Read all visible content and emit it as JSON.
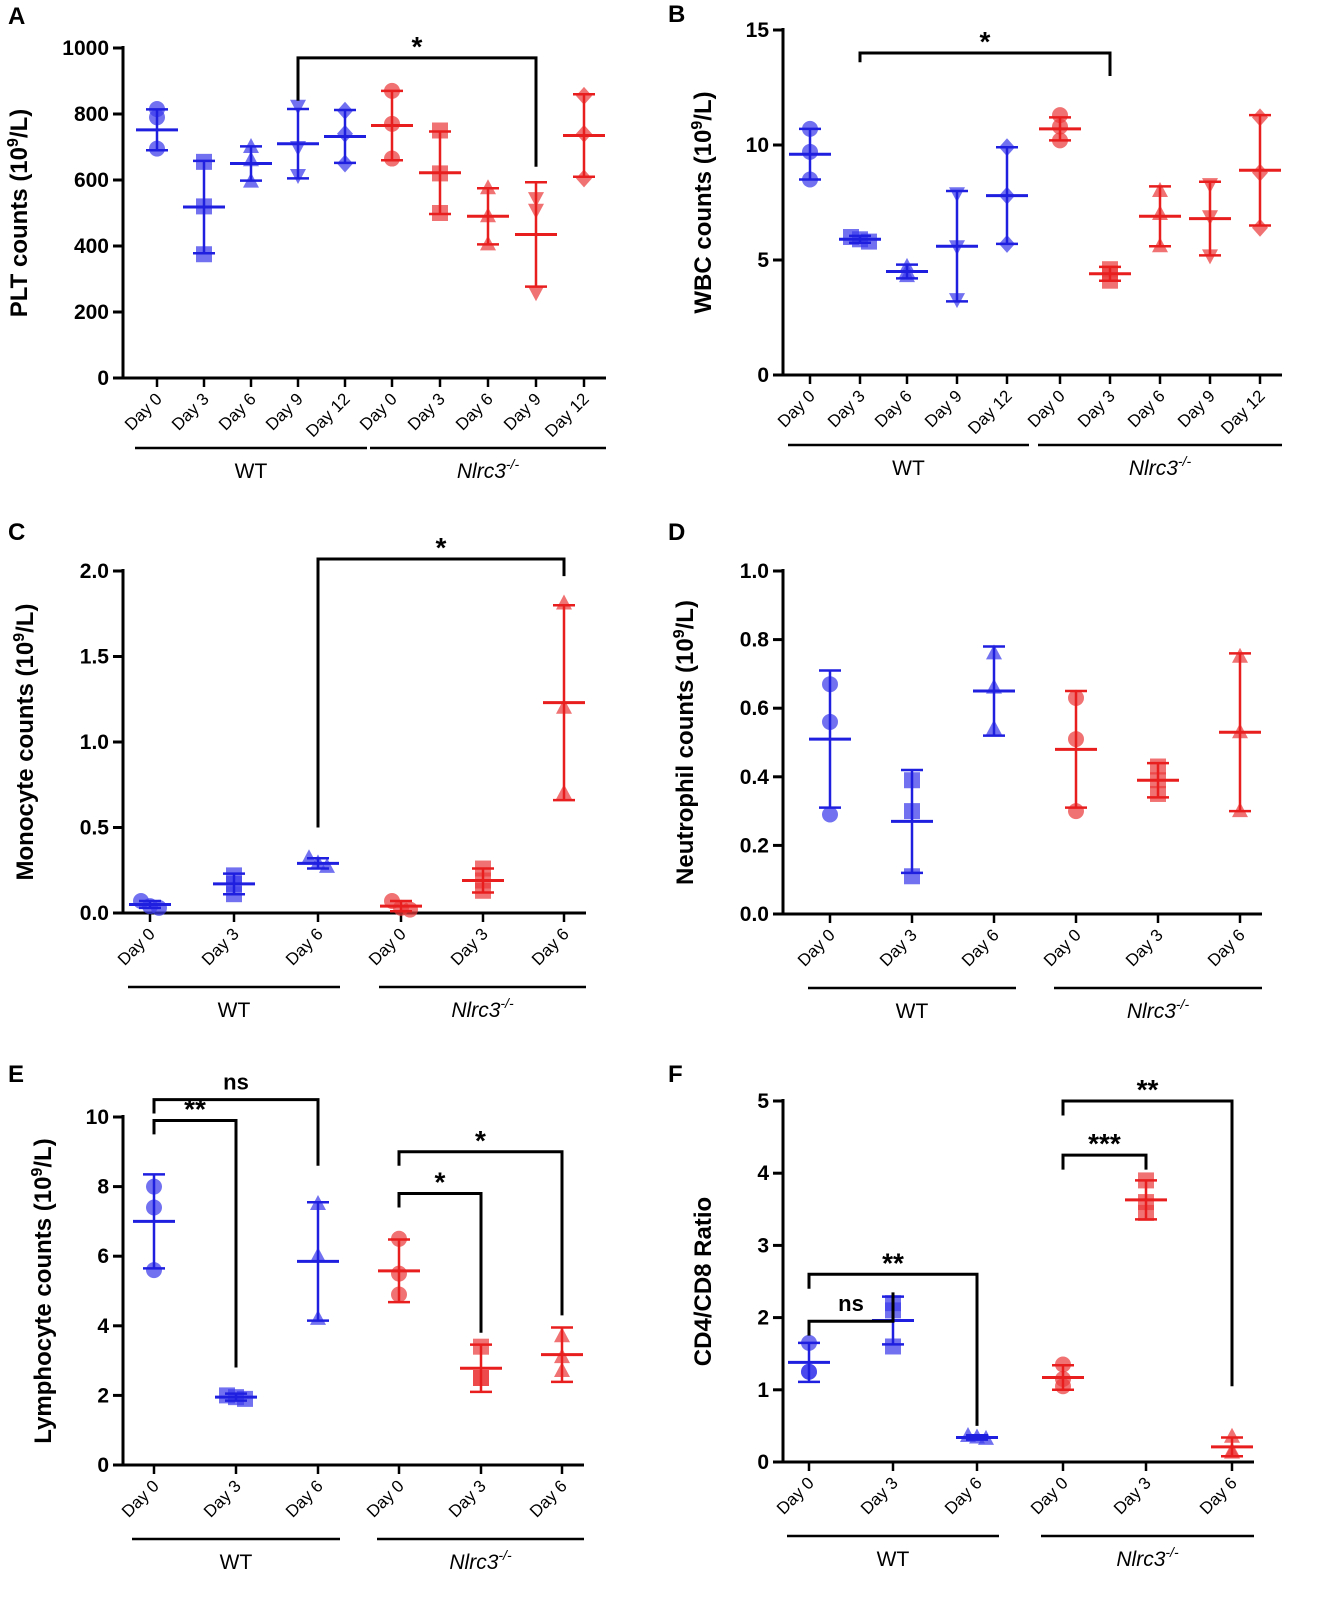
{
  "figure": {
    "group_wt": "WT",
    "group_ko": "Nlrc3",
    "group_ko_sup": "-/-",
    "colors": {
      "wt": "#1f1fe0",
      "ko": "#e81e1e",
      "axis": "#000000"
    }
  },
  "chart_data": [
    {
      "panel": "A",
      "type": "scatter",
      "ylabel": "PLT counts (10",
      "ylabel_sup": "9",
      "ylabel_end": "/L)",
      "ylim": [
        0,
        1000
      ],
      "yticks": [
        0,
        200,
        400,
        600,
        800,
        1000
      ],
      "categories": [
        "Day 0",
        "Day 3",
        "Day 6",
        "Day 9",
        "Day 12",
        "Day 0",
        "Day 3",
        "Day 6",
        "Day 9",
        "Day 12"
      ],
      "groups": [
        {
          "label": "WT",
          "from": 0,
          "to": 4
        },
        {
          "label": "Nlrc3",
          "from": 5,
          "to": 9
        }
      ],
      "series": [
        {
          "name": "WT Day 0",
          "group": "wt",
          "x": 0,
          "marker": "circle",
          "points": [
            815,
            790,
            695
          ],
          "mean": 752,
          "sd": 62
        },
        {
          "name": "WT Day 3",
          "group": "wt",
          "x": 1,
          "marker": "square",
          "points": [
            655,
            520,
            375
          ],
          "mean": 518,
          "sd": 140
        },
        {
          "name": "WT Day 6",
          "group": "wt",
          "x": 2,
          "marker": "triangle",
          "points": [
            700,
            660,
            595
          ],
          "mean": 650,
          "sd": 52
        },
        {
          "name": "WT Day 9",
          "group": "wt",
          "x": 3,
          "marker": "triangle-down",
          "points": [
            825,
            700,
            615
          ],
          "mean": 710,
          "sd": 105
        },
        {
          "name": "WT Day 12",
          "group": "wt",
          "x": 4,
          "marker": "diamond",
          "points": [
            810,
            740,
            650
          ],
          "mean": 732,
          "sd": 80
        },
        {
          "name": "Nlrc3-/- Day 0",
          "group": "ko",
          "x": 5,
          "marker": "circle",
          "points": [
            870,
            770,
            665
          ],
          "mean": 765,
          "sd": 105
        },
        {
          "name": "Nlrc3-/- Day 3",
          "group": "ko",
          "x": 6,
          "marker": "square",
          "points": [
            750,
            620,
            500
          ],
          "mean": 622,
          "sd": 125
        },
        {
          "name": "Nlrc3-/- Day 6",
          "group": "ko",
          "x": 7,
          "marker": "triangle",
          "points": [
            575,
            490,
            405
          ],
          "mean": 490,
          "sd": 85
        },
        {
          "name": "Nlrc3-/- Day 9",
          "group": "ko",
          "x": 8,
          "marker": "triangle-down",
          "points": [
            545,
            510,
            260
          ],
          "mean": 435,
          "sd": 158
        },
        {
          "name": "Nlrc3-/- Day 12",
          "group": "ko",
          "x": 9,
          "marker": "diamond",
          "points": [
            855,
            740,
            605
          ],
          "mean": 735,
          "sd": 125
        }
      ],
      "brackets": [
        {
          "from": 3,
          "to": 8,
          "level": 970,
          "label": "*",
          "dropFrom": 840,
          "dropTo": 640
        }
      ]
    },
    {
      "panel": "B",
      "type": "scatter",
      "ylabel": "WBC counts (10",
      "ylabel_sup": "9",
      "ylabel_end": "/L)",
      "ylim": [
        0,
        15
      ],
      "yticks": [
        0,
        5,
        10,
        15
      ],
      "categories": [
        "Day 0",
        "Day 3",
        "Day 6",
        "Day 9",
        "Day 12",
        "Day 0",
        "Day 3",
        "Day 6",
        "Day 9",
        "Day 12"
      ],
      "groups": [
        {
          "label": "WT",
          "from": 0,
          "to": 4
        },
        {
          "label": "Nlrc3",
          "from": 5,
          "to": 9
        }
      ],
      "series": [
        {
          "name": "WT Day 0",
          "group": "wt",
          "x": 0,
          "marker": "circle",
          "points": [
            10.7,
            9.7,
            8.5
          ],
          "mean": 9.6,
          "sd": 1.1
        },
        {
          "name": "WT Day 3",
          "group": "wt",
          "x": 1,
          "marker": "square",
          "points": [
            6.0,
            5.9,
            5.8
          ],
          "mean": 5.9,
          "sd": 0.15
        },
        {
          "name": "WT Day 6",
          "group": "wt",
          "x": 2,
          "marker": "triangle",
          "points": [
            4.7,
            4.5,
            4.3
          ],
          "mean": 4.5,
          "sd": 0.3
        },
        {
          "name": "WT Day 9",
          "group": "wt",
          "x": 3,
          "marker": "triangle-down",
          "points": [
            7.9,
            5.6,
            3.3
          ],
          "mean": 5.6,
          "sd": 2.4
        },
        {
          "name": "WT Day 12",
          "group": "wt",
          "x": 4,
          "marker": "diamond",
          "points": [
            9.9,
            7.8,
            5.7
          ],
          "mean": 7.8,
          "sd": 2.1
        },
        {
          "name": "Nlrc3-/- Day 0",
          "group": "ko",
          "x": 5,
          "marker": "circle",
          "points": [
            11.3,
            10.8,
            10.2
          ],
          "mean": 10.7,
          "sd": 0.5
        },
        {
          "name": "Nlrc3-/- Day 3",
          "group": "ko",
          "x": 6,
          "marker": "square",
          "points": [
            4.6,
            4.4,
            4.1
          ],
          "mean": 4.4,
          "sd": 0.3
        },
        {
          "name": "Nlrc3-/- Day 6",
          "group": "ko",
          "x": 7,
          "marker": "triangle",
          "points": [
            8.0,
            7.0,
            5.6
          ],
          "mean": 6.9,
          "sd": 1.3
        },
        {
          "name": "Nlrc3-/- Day 9",
          "group": "ko",
          "x": 8,
          "marker": "triangle-down",
          "points": [
            8.3,
            6.9,
            5.2
          ],
          "mean": 6.8,
          "sd": 1.6
        },
        {
          "name": "Nlrc3-/- Day 12",
          "group": "ko",
          "x": 9,
          "marker": "diamond",
          "points": [
            11.2,
            8.8,
            6.4
          ],
          "mean": 8.9,
          "sd": 2.4
        }
      ],
      "brackets": [
        {
          "from": 1,
          "to": 6,
          "level": 14.0,
          "label": "*",
          "dropFrom": 13.6,
          "dropTo": 13.0
        }
      ]
    },
    {
      "panel": "C",
      "type": "scatter",
      "ylabel": "Monocyte counts (10",
      "ylabel_sup": "9",
      "ylabel_end": "/L)",
      "ylim": [
        0,
        2.0
      ],
      "yticks": [
        0.0,
        0.5,
        1.0,
        1.5,
        2.0
      ],
      "ydecimals": 1,
      "categories": [
        "Day 0",
        "Day 3",
        "Day 6",
        "Day 0",
        "Day 3",
        "Day 6"
      ],
      "groups": [
        {
          "label": "WT",
          "from": 0,
          "to": 2
        },
        {
          "label": "Nlrc3",
          "from": 3,
          "to": 5
        }
      ],
      "series": [
        {
          "name": "WT Day 0",
          "group": "wt",
          "x": 0,
          "marker": "circle",
          "points": [
            0.07,
            0.04,
            0.03
          ],
          "mean": 0.05,
          "sd": 0.02
        },
        {
          "name": "WT Day 3",
          "group": "wt",
          "x": 1,
          "marker": "square",
          "points": [
            0.22,
            0.17,
            0.11
          ],
          "mean": 0.17,
          "sd": 0.06
        },
        {
          "name": "WT Day 6",
          "group": "wt",
          "x": 2,
          "marker": "triangle",
          "points": [
            0.32,
            0.29,
            0.27
          ],
          "mean": 0.29,
          "sd": 0.03
        },
        {
          "name": "Nlrc3-/- Day 0",
          "group": "ko",
          "x": 3,
          "marker": "circle",
          "points": [
            0.07,
            0.03,
            0.02
          ],
          "mean": 0.04,
          "sd": 0.03
        },
        {
          "name": "Nlrc3-/- Day 3",
          "group": "ko",
          "x": 4,
          "marker": "square",
          "points": [
            0.26,
            0.19,
            0.13
          ],
          "mean": 0.19,
          "sd": 0.07
        },
        {
          "name": "Nlrc3-/- Day 6",
          "group": "ko",
          "x": 5,
          "marker": "triangle",
          "points": [
            1.81,
            1.2,
            0.7
          ],
          "mean": 1.23,
          "sd": 0.57
        }
      ],
      "brackets": [
        {
          "from": 2,
          "to": 5,
          "level": 2.07,
          "label": "*",
          "dropFrom": 0.5,
          "dropTo": 1.97
        }
      ]
    },
    {
      "panel": "D",
      "type": "scatter",
      "ylabel": "Neutrophil counts (10",
      "ylabel_sup": "9",
      "ylabel_end": "/L)",
      "ylim": [
        0,
        1.0
      ],
      "yticks": [
        0.0,
        0.2,
        0.4,
        0.6,
        0.8,
        1.0
      ],
      "ydecimals": 1,
      "categories": [
        "Day 0",
        "Day 3",
        "Day 6",
        "Day 0",
        "Day 3",
        "Day 6"
      ],
      "groups": [
        {
          "label": "WT",
          "from": 0,
          "to": 2
        },
        {
          "label": "Nlrc3",
          "from": 3,
          "to": 5
        }
      ],
      "series": [
        {
          "name": "WT Day 0",
          "group": "wt",
          "x": 0,
          "marker": "circle",
          "points": [
            0.67,
            0.56,
            0.29
          ],
          "mean": 0.51,
          "sd": 0.2
        },
        {
          "name": "WT Day 3",
          "group": "wt",
          "x": 1,
          "marker": "square",
          "points": [
            0.39,
            0.3,
            0.11
          ],
          "mean": 0.27,
          "sd": 0.15
        },
        {
          "name": "WT Day 6",
          "group": "wt",
          "x": 2,
          "marker": "triangle",
          "points": [
            0.76,
            0.66,
            0.54
          ],
          "mean": 0.65,
          "sd": 0.13
        },
        {
          "name": "Nlrc3-/- Day 0",
          "group": "ko",
          "x": 3,
          "marker": "circle",
          "points": [
            0.63,
            0.51,
            0.3
          ],
          "mean": 0.48,
          "sd": 0.17
        },
        {
          "name": "Nlrc3-/- Day 3",
          "group": "ko",
          "x": 4,
          "marker": "square",
          "points": [
            0.43,
            0.39,
            0.35
          ],
          "mean": 0.39,
          "sd": 0.05
        },
        {
          "name": "Nlrc3-/- Day 6",
          "group": "ko",
          "x": 5,
          "marker": "triangle",
          "points": [
            0.75,
            0.53,
            0.3
          ],
          "mean": 0.53,
          "sd": 0.23
        }
      ],
      "brackets": []
    },
    {
      "panel": "E",
      "type": "scatter",
      "ylabel": "Lymphocyte counts (10",
      "ylabel_sup": "9",
      "ylabel_end": "/L)",
      "ylim": [
        0,
        10
      ],
      "yticks": [
        0,
        2,
        4,
        6,
        8,
        10
      ],
      "categories": [
        "Day 0",
        "Day 3",
        "Day 6",
        "Day 0",
        "Day 3",
        "Day 6"
      ],
      "groups": [
        {
          "label": "WT",
          "from": 0,
          "to": 2
        },
        {
          "label": "Nlrc3",
          "from": 3,
          "to": 5
        }
      ],
      "series": [
        {
          "name": "WT Day 0",
          "group": "wt",
          "x": 0,
          "marker": "circle",
          "points": [
            8.0,
            7.4,
            5.6
          ],
          "mean": 7.0,
          "sd": 1.35
        },
        {
          "name": "WT Day 3",
          "group": "wt",
          "x": 1,
          "marker": "square",
          "points": [
            2.0,
            1.95,
            1.9
          ],
          "mean": 1.95,
          "sd": 0.1
        },
        {
          "name": "WT Day 6",
          "group": "wt",
          "x": 2,
          "marker": "triangle",
          "points": [
            7.5,
            6.0,
            4.2
          ],
          "mean": 5.85,
          "sd": 1.7
        },
        {
          "name": "Nlrc3-/- Day 0",
          "group": "ko",
          "x": 3,
          "marker": "circle",
          "points": [
            6.5,
            5.5,
            4.9
          ],
          "mean": 5.58,
          "sd": 0.9
        },
        {
          "name": "Nlrc3-/- Day 3",
          "group": "ko",
          "x": 4,
          "marker": "square",
          "points": [
            3.4,
            2.5,
            2.5
          ],
          "mean": 2.78,
          "sd": 0.68
        },
        {
          "name": "Nlrc3-/- Day 6",
          "group": "ko",
          "x": 5,
          "marker": "triangle",
          "points": [
            3.7,
            3.1,
            2.7
          ],
          "mean": 3.17,
          "sd": 0.78
        }
      ],
      "brackets": [
        {
          "from": 0,
          "to": 2,
          "level": 10.5,
          "label": "ns",
          "dropFrom": 10.1,
          "dropTo": 8.6
        },
        {
          "from": 0,
          "to": 1,
          "level": 9.9,
          "label": "**",
          "dropFrom": 9.5,
          "dropTo": 2.8
        },
        {
          "from": 3,
          "to": 5,
          "level": 9.0,
          "label": "*",
          "dropFrom": 8.6,
          "dropTo": 4.3
        },
        {
          "from": 3,
          "to": 4,
          "level": 7.8,
          "label": "*",
          "dropFrom": 7.4,
          "dropTo": 3.8
        }
      ]
    },
    {
      "panel": "F",
      "type": "scatter",
      "ylabel": "CD4/CD8 Ratio",
      "ylabel_sup": "",
      "ylabel_end": "",
      "ylim": [
        0,
        5
      ],
      "yticks": [
        0,
        1,
        2,
        3,
        4,
        5
      ],
      "categories": [
        "Day 0",
        "Day 3",
        "Day 6",
        "Day 0",
        "Day 3",
        "Day 6"
      ],
      "groups": [
        {
          "label": "WT",
          "from": 0,
          "to": 2
        },
        {
          "label": "Nlrc3",
          "from": 3,
          "to": 5
        }
      ],
      "series": [
        {
          "name": "WT Day 0",
          "group": "wt",
          "x": 0,
          "marker": "circle",
          "points": [
            1.65,
            1.25,
            1.25
          ],
          "mean": 1.38,
          "sd": 0.27
        },
        {
          "name": "WT Day 3",
          "group": "wt",
          "x": 1,
          "marker": "square",
          "points": [
            2.2,
            2.1,
            1.6
          ],
          "mean": 1.96,
          "sd": 0.33
        },
        {
          "name": "WT Day 6",
          "group": "wt",
          "x": 2,
          "marker": "triangle",
          "points": [
            0.36,
            0.34,
            0.32
          ],
          "mean": 0.34,
          "sd": 0.03
        },
        {
          "name": "Nlrc3-/- Day 0",
          "group": "ko",
          "x": 3,
          "marker": "circle",
          "points": [
            1.35,
            1.15,
            1.05
          ],
          "mean": 1.17,
          "sd": 0.17
        },
        {
          "name": "Nlrc3-/- Day 3",
          "group": "ko",
          "x": 4,
          "marker": "square",
          "points": [
            3.9,
            3.6,
            3.45
          ],
          "mean": 3.63,
          "sd": 0.27
        },
        {
          "name": "Nlrc3-/- Day 6",
          "group": "ko",
          "x": 5,
          "marker": "triangle",
          "points": [
            0.35,
            0.15,
            0.13
          ],
          "mean": 0.21,
          "sd": 0.13
        }
      ],
      "brackets": [
        {
          "from": 0,
          "to": 2,
          "level": 2.6,
          "label": "**",
          "dropFrom": 2.4,
          "dropTo": 0.5
        },
        {
          "from": 0,
          "to": 1,
          "level": 1.95,
          "label": "ns",
          "dropFrom": 1.75,
          "dropTo": 2.35
        },
        {
          "from": 3,
          "to": 5,
          "level": 5.0,
          "label": "**",
          "dropFrom": 4.8,
          "dropTo": 1.05
        },
        {
          "from": 3,
          "to": 4,
          "level": 4.25,
          "label": "***",
          "dropFrom": 4.05,
          "dropTo": 4.05
        }
      ]
    }
  ]
}
